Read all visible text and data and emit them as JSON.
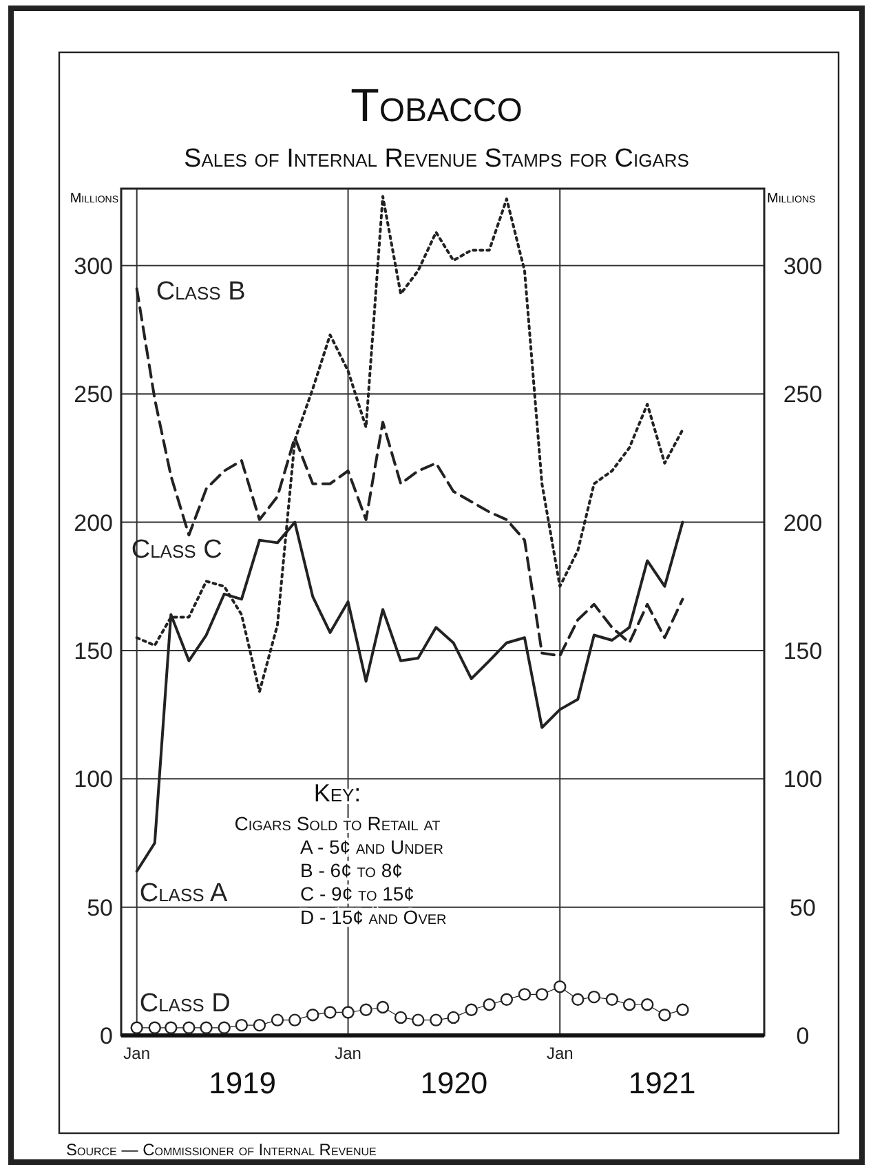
{
  "chart_data": {
    "type": "line",
    "title": "Tobacco",
    "subtitle": "Sales of Internal Revenue Stamps for Cigars",
    "ylabel": "Millions",
    "y2label": "Millions",
    "x": [
      "1919-01",
      "1919-02",
      "1919-03",
      "1919-04",
      "1919-05",
      "1919-06",
      "1919-07",
      "1919-08",
      "1919-09",
      "1919-10",
      "1919-11",
      "1919-12",
      "1920-01",
      "1920-02",
      "1920-03",
      "1920-04",
      "1920-05",
      "1920-06",
      "1920-07",
      "1920-08",
      "1920-09",
      "1920-10",
      "1920-11",
      "1920-12",
      "1921-01",
      "1921-02",
      "1921-03",
      "1921-04",
      "1921-05",
      "1921-06",
      "1921-07",
      "1921-08"
    ],
    "xlim": [
      "1918-12-05",
      "1921-12-20"
    ],
    "xticks": [
      {
        "value": "1919-01",
        "label": "Jan"
      },
      {
        "value": "1920-01",
        "label": "Jan"
      },
      {
        "value": "1921-01",
        "label": "Jan"
      }
    ],
    "ylim": [
      0,
      330
    ],
    "yticks": [
      0,
      50,
      100,
      150,
      200,
      250,
      300
    ],
    "y2lim": [
      0,
      330
    ],
    "y2ticks": [
      0,
      50,
      100,
      150,
      200,
      250,
      300
    ],
    "grid": true,
    "series": [
      {
        "name": "Class A",
        "color": "#222222",
        "line_style": "solid",
        "marker": "none",
        "values": [
          64,
          75,
          164,
          146,
          156,
          172,
          170,
          193,
          192,
          200,
          171,
          157,
          169,
          138,
          166,
          146,
          147,
          159,
          153,
          139,
          146,
          153,
          155,
          120,
          127,
          131,
          156,
          154,
          159,
          185,
          175,
          200
        ]
      },
      {
        "name": "Class B",
        "color": "#222222",
        "line_style": "dashed",
        "marker": "none",
        "values": [
          291,
          248,
          218,
          195,
          213,
          220,
          224,
          201,
          210,
          233,
          215,
          215,
          220,
          201,
          239,
          215,
          220,
          223,
          212,
          208,
          204,
          201,
          193,
          149,
          148,
          162,
          168,
          159,
          153,
          168,
          155,
          170
        ]
      },
      {
        "name": "Class C",
        "color": "#222222",
        "line_style": "dotted",
        "marker": "none",
        "values": [
          155,
          152,
          163,
          163,
          177,
          175,
          164,
          134,
          160,
          232,
          252,
          273,
          259,
          237,
          327,
          289,
          298,
          313,
          302,
          306,
          306,
          326,
          298,
          215,
          175,
          189,
          215,
          220,
          229,
          246,
          223,
          236
        ]
      },
      {
        "name": "Class D",
        "color": "#222222",
        "line_style": "solid",
        "marker": "circle",
        "values": [
          3,
          3,
          3,
          3,
          3,
          3,
          4,
          4,
          6,
          6,
          8,
          9,
          9,
          10,
          11,
          7,
          6,
          6,
          7,
          10,
          12,
          14,
          16,
          16,
          19,
          14,
          15,
          14,
          12,
          12,
          8,
          10
        ]
      }
    ],
    "annotations": [
      "Key:",
      "Cigars Sold to Retail at",
      "A - 5¢ and Under",
      "B - 6¢ to 8¢",
      "C - 9¢ to 15¢",
      "D - 15¢ and Over",
      "1919",
      "1920",
      "1921",
      "Source — Commissioner of Internal Revenue"
    ]
  }
}
